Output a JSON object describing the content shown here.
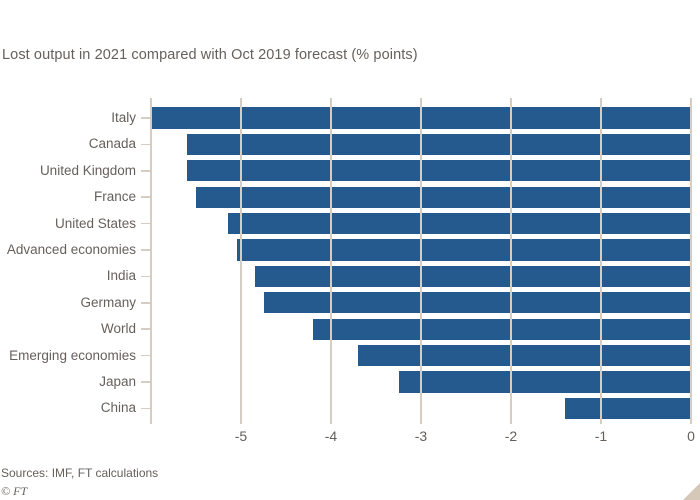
{
  "title": "Lost output in 2021 compared with Oct 2019 forecast (% points)",
  "source": "Sources: IMF, FT calculations",
  "copyright": "© FT",
  "colors": {
    "bar": "#245a8d",
    "grid": "#d5cdc2",
    "text": "#66605c",
    "background": "#ffffff",
    "corner_triangle": "#d5c8b8"
  },
  "chart_data": {
    "type": "bar",
    "orientation": "horizontal",
    "title": "Lost output in 2021 compared with Oct 2019 forecast (% points)",
    "unit": "% points",
    "categories": [
      "Italy",
      "Canada",
      "United Kingdom",
      "France",
      "United States",
      "Advanced economies",
      "India",
      "Germany",
      "World",
      "Emerging economies",
      "Japan",
      "China"
    ],
    "values": [
      -6.0,
      -5.6,
      -5.6,
      -5.5,
      -5.15,
      -5.05,
      -4.85,
      -4.75,
      -4.2,
      -3.7,
      -3.25,
      -1.4
    ],
    "xlim": [
      -6,
      0
    ],
    "xticks": [
      -5,
      -4,
      -3,
      -2,
      -1,
      0
    ],
    "xtick_labels": [
      "-5",
      "-4",
      "-3",
      "-2",
      "-1",
      "0"
    ],
    "grid": "vertical gridlines overlaid on bars, no horizontal baseline",
    "legend": "none"
  }
}
